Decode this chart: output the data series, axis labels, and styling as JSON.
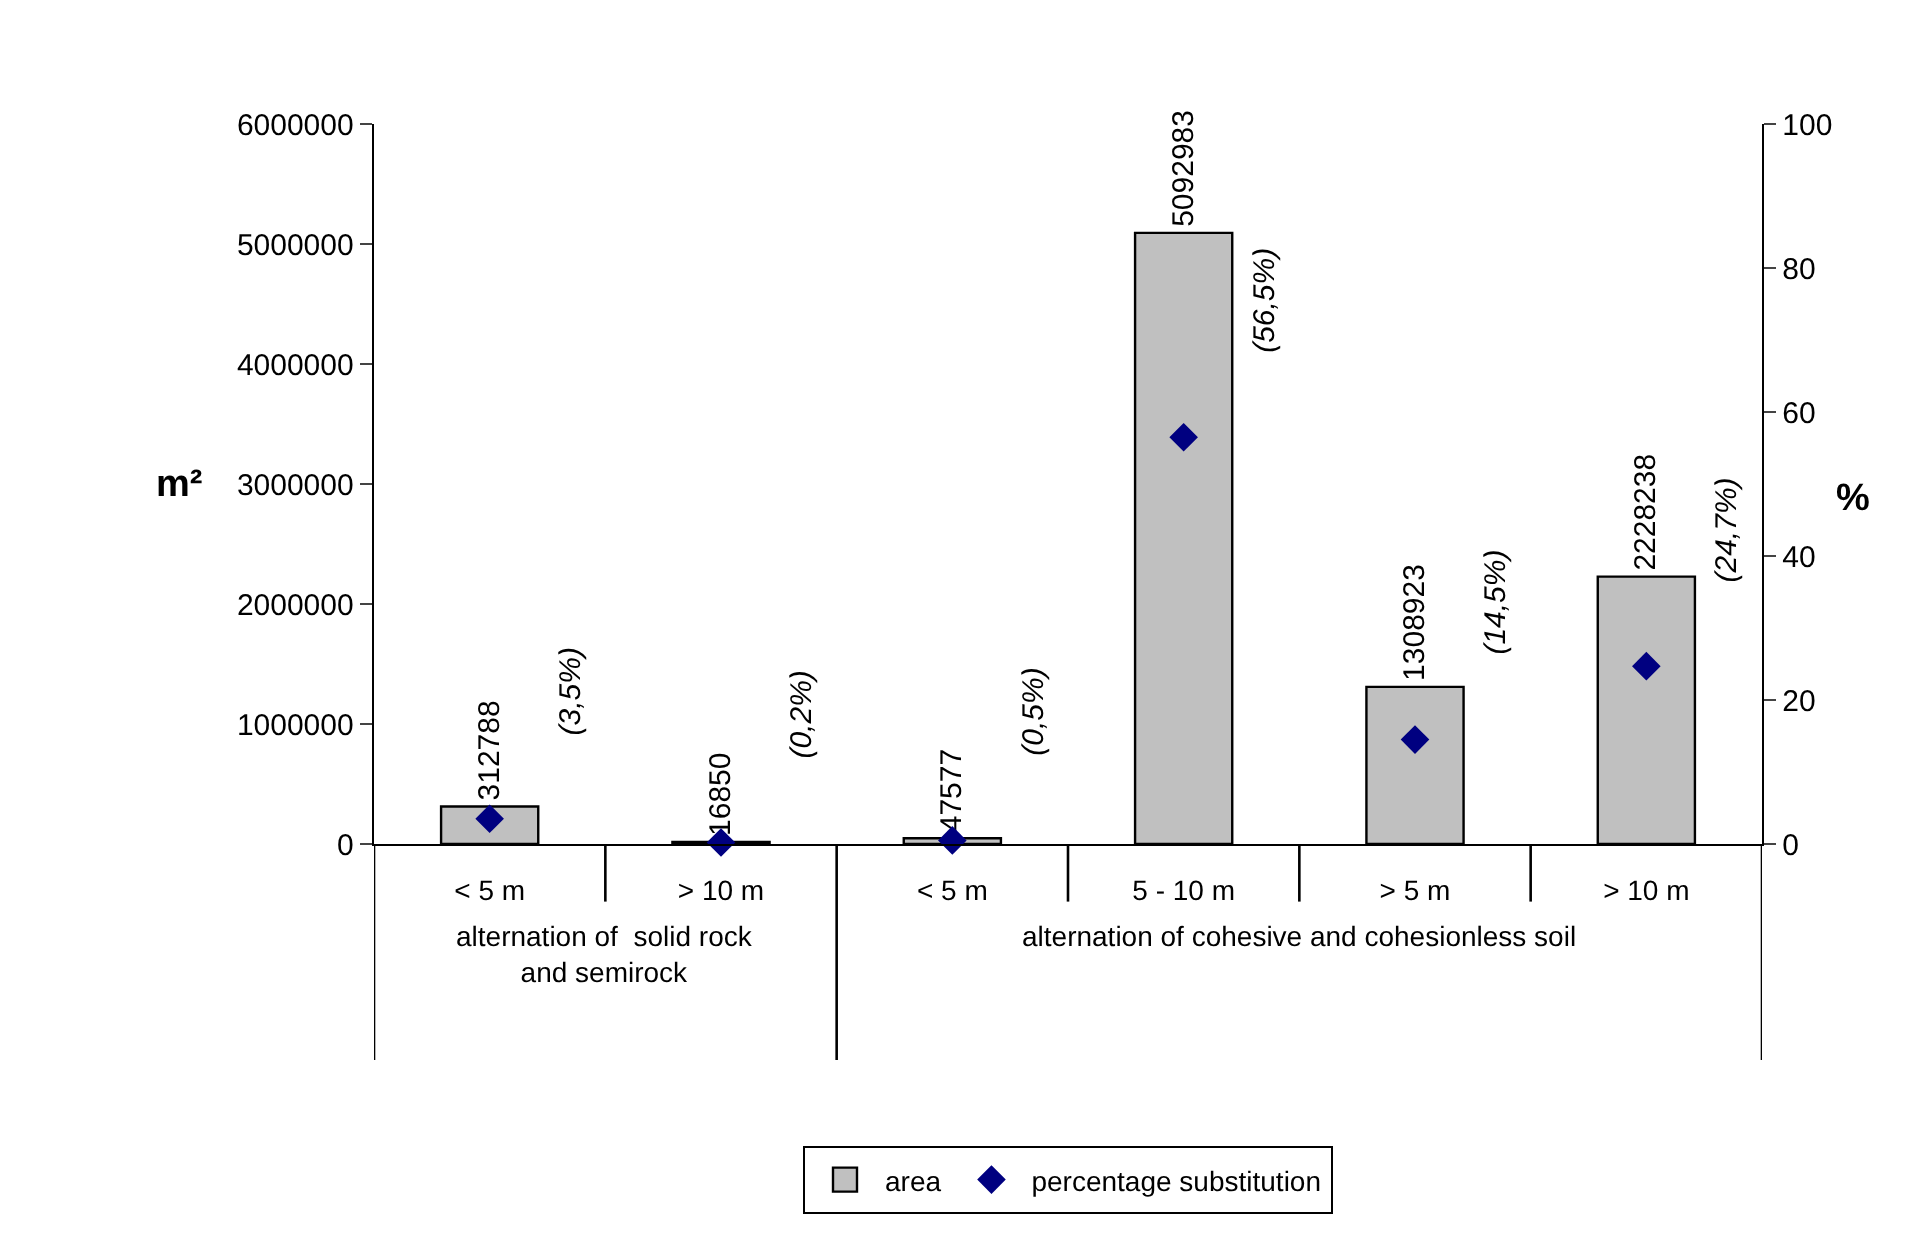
{
  "chart_data": {
    "type": "bar",
    "categories": [
      "< 5 m",
      "> 10 m",
      "< 5 m",
      "5 - 10 m",
      "> 5 m",
      "> 10 m"
    ],
    "annotations": [
      "alternation of  solid rock and semirock",
      "alternation of cohesive and cohesionless soil"
    ],
    "ylabel": "m²",
    "y2label": "%",
    "series": [
      {
        "name": "area",
        "color": "#c0c0c0",
        "values": [
          312788,
          16850,
          47577,
          5092983,
          1308923,
          2228238
        ],
        "data_labels": true
      },
      {
        "name": "percentage substitution",
        "type": "scatter",
        "axis": "y2",
        "color": "#000080",
        "marker": "diamond",
        "values": [
          3.5,
          0.2,
          0.5,
          56.5,
          14.5,
          24.7
        ],
        "value_labels": [
          "(3,5%)",
          "(0,2%)",
          "(0,5%)",
          "(56,5%)",
          "(14,5%)",
          "(24,7%)"
        ]
      }
    ],
    "ylim": [
      0,
      6000000
    ],
    "yticks": [
      0,
      1000000,
      2000000,
      3000000,
      4000000,
      5000000,
      6000000
    ],
    "y2lim": [
      0,
      100
    ],
    "y2ticks": [
      0,
      20,
      40,
      60,
      80,
      100
    ],
    "grid": false,
    "legend": "bottom"
  }
}
